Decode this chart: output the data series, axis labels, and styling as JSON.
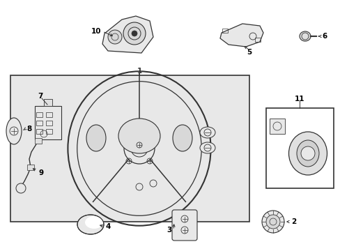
{
  "bg_color": "#ffffff",
  "inner_bg_color": "#e8e8e8",
  "line_color": "#333333",
  "label_color": "#000000",
  "fig_width": 4.89,
  "fig_height": 3.6,
  "dpi": 100
}
